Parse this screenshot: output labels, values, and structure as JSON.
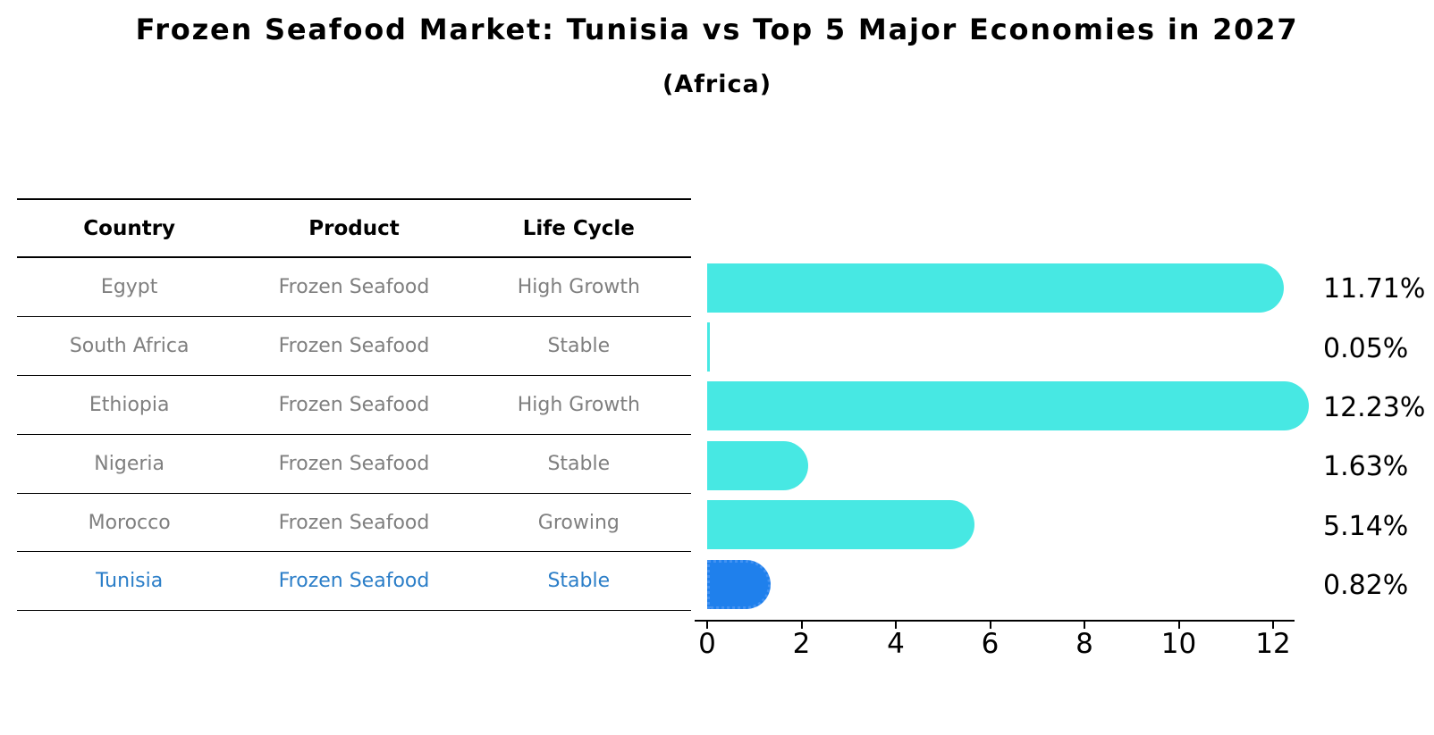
{
  "title": "Frozen Seafood Market: Tunisia vs Top 5 Major Economies in 2027",
  "subtitle": "(Africa)",
  "table": {
    "headers": [
      "Country",
      "Product",
      "Life Cycle"
    ],
    "rows": [
      {
        "country": "Egypt",
        "product": "Frozen Seafood",
        "life_cycle": "High Growth",
        "highlight": false
      },
      {
        "country": "South Africa",
        "product": "Frozen Seafood",
        "life_cycle": "Stable",
        "highlight": false
      },
      {
        "country": "Ethiopia",
        "product": "Frozen Seafood",
        "life_cycle": "High Growth",
        "highlight": false
      },
      {
        "country": "Nigeria",
        "product": "Frozen Seafood",
        "life_cycle": "Stable",
        "highlight": false
      },
      {
        "country": "Morocco",
        "product": "Frozen Seafood",
        "life_cycle": "Growing",
        "highlight": false
      },
      {
        "country": "Tunisia",
        "product": "Frozen Seafood",
        "life_cycle": "Stable",
        "highlight": true
      }
    ]
  },
  "chart_data": {
    "type": "bar",
    "orientation": "horizontal",
    "title": "Frozen Seafood Market: Tunisia vs Top 5 Major Economies in 2027",
    "subtitle": "(Africa)",
    "categories": [
      "Egypt",
      "South Africa",
      "Ethiopia",
      "Nigeria",
      "Morocco",
      "Tunisia"
    ],
    "values": [
      11.71,
      0.05,
      12.23,
      1.63,
      5.14,
      0.82
    ],
    "value_labels": [
      "11.71%",
      "0.05%",
      "12.23%",
      "1.63%",
      "5.14%",
      "0.82%"
    ],
    "unit": "%",
    "x_ticks": [
      0,
      2,
      4,
      6,
      8,
      10,
      12
    ],
    "xlim": [
      0,
      12.45
    ],
    "grid": false,
    "legend": "none",
    "bar_color": "#47e8e3",
    "highlight_color": "#1f80ec",
    "highlight_index": 5,
    "highlight_category": "Tunisia"
  },
  "colors": {
    "background": "#ffffff",
    "heading_text": "#000000",
    "table_text": "#7f7f7f",
    "highlight_text": "#2b7ec8",
    "bar": "#47e8e3",
    "highlight_bar": "#1f80ec",
    "axis": "#000000"
  }
}
